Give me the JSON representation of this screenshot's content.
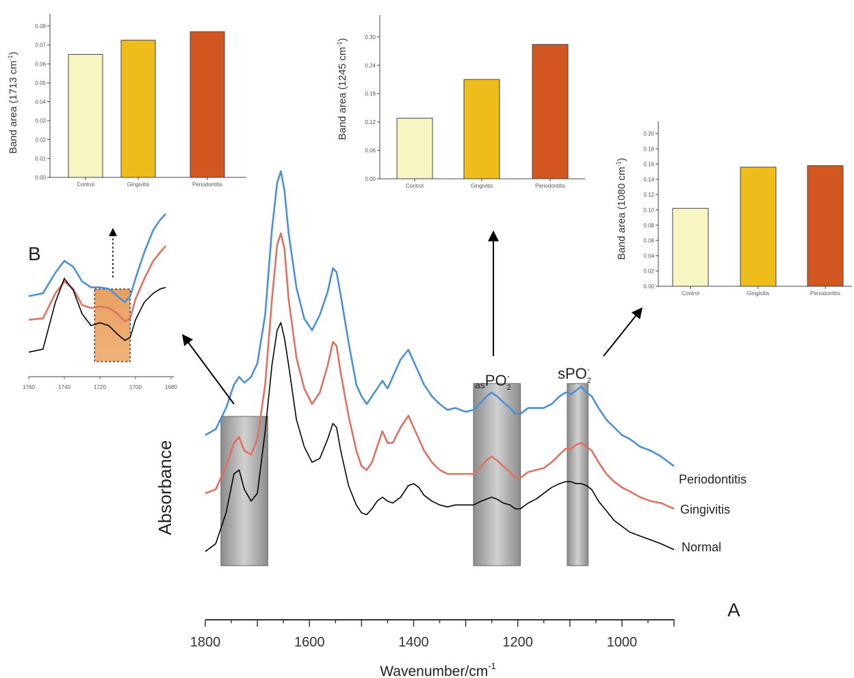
{
  "chart_data": [
    {
      "id": "main",
      "type": "line",
      "xlabel": "Wavenumber/cm",
      "xlabel_superscript": "-1",
      "ylabel": "Absorbance",
      "xlim": [
        1800,
        900
      ],
      "x_axis_reversed": true,
      "xticks": [
        1800,
        1600,
        1400,
        1200,
        1000
      ],
      "panel_label": "A",
      "grid": false,
      "highlight_bands": [
        [
          1770,
          1680
        ],
        [
          1285,
          1195
        ],
        [
          1105,
          1065
        ]
      ],
      "band_labels": [
        {
          "prefix": "as",
          "text": "PO",
          "sub": "2",
          "sup": "-"
        },
        {
          "prefix": "",
          "text": "sPO",
          "sub": "2",
          "sup": "-"
        }
      ],
      "series": [
        {
          "name": "Periodontitis",
          "color": "#4a90d9",
          "x": [
            1800,
            1780,
            1760,
            1745,
            1735,
            1725,
            1712,
            1700,
            1685,
            1672,
            1662,
            1655,
            1648,
            1640,
            1625,
            1610,
            1595,
            1580,
            1565,
            1555,
            1548,
            1540,
            1525,
            1510,
            1500,
            1490,
            1480,
            1470,
            1460,
            1450,
            1440,
            1425,
            1410,
            1400,
            1390,
            1380,
            1365,
            1350,
            1335,
            1320,
            1300,
            1285,
            1270,
            1260,
            1250,
            1240,
            1228,
            1215,
            1205,
            1195,
            1180,
            1165,
            1150,
            1135,
            1120,
            1108,
            1098,
            1088,
            1078,
            1068,
            1058,
            1045,
            1030,
            1015,
            1000,
            985,
            965,
            945,
            925,
            900
          ],
          "y": [
            0.37,
            0.385,
            0.44,
            0.5,
            0.52,
            0.505,
            0.52,
            0.555,
            0.68,
            0.9,
            1.02,
            1.05,
            1.0,
            0.89,
            0.75,
            0.67,
            0.64,
            0.68,
            0.74,
            0.8,
            0.79,
            0.73,
            0.61,
            0.5,
            0.47,
            0.45,
            0.47,
            0.49,
            0.51,
            0.49,
            0.52,
            0.565,
            0.59,
            0.56,
            0.53,
            0.5,
            0.47,
            0.45,
            0.435,
            0.44,
            0.43,
            0.435,
            0.455,
            0.47,
            0.48,
            0.47,
            0.455,
            0.44,
            0.425,
            0.425,
            0.44,
            0.44,
            0.44,
            0.45,
            0.47,
            0.48,
            0.475,
            0.485,
            0.495,
            0.48,
            0.47,
            0.44,
            0.41,
            0.39,
            0.37,
            0.36,
            0.34,
            0.33,
            0.315,
            0.29
          ]
        },
        {
          "name": "Gingivitis",
          "color": "#e07060",
          "x": [
            1800,
            1780,
            1760,
            1745,
            1735,
            1725,
            1712,
            1700,
            1685,
            1672,
            1662,
            1655,
            1648,
            1640,
            1625,
            1610,
            1595,
            1580,
            1565,
            1555,
            1548,
            1540,
            1525,
            1510,
            1500,
            1490,
            1480,
            1470,
            1460,
            1450,
            1440,
            1425,
            1410,
            1400,
            1390,
            1380,
            1365,
            1350,
            1335,
            1320,
            1300,
            1285,
            1270,
            1260,
            1250,
            1240,
            1228,
            1215,
            1205,
            1195,
            1180,
            1165,
            1150,
            1135,
            1120,
            1108,
            1098,
            1088,
            1078,
            1068,
            1058,
            1045,
            1030,
            1015,
            1000,
            985,
            965,
            945,
            925,
            900
          ],
          "y": [
            0.22,
            0.23,
            0.29,
            0.35,
            0.365,
            0.33,
            0.32,
            0.36,
            0.5,
            0.72,
            0.86,
            0.89,
            0.85,
            0.72,
            0.57,
            0.49,
            0.45,
            0.48,
            0.55,
            0.61,
            0.6,
            0.53,
            0.42,
            0.33,
            0.29,
            0.28,
            0.3,
            0.34,
            0.38,
            0.35,
            0.35,
            0.39,
            0.42,
            0.39,
            0.36,
            0.33,
            0.3,
            0.28,
            0.27,
            0.27,
            0.27,
            0.27,
            0.29,
            0.305,
            0.315,
            0.305,
            0.29,
            0.275,
            0.26,
            0.26,
            0.275,
            0.28,
            0.285,
            0.3,
            0.32,
            0.335,
            0.335,
            0.345,
            0.35,
            0.34,
            0.33,
            0.3,
            0.27,
            0.25,
            0.235,
            0.225,
            0.21,
            0.2,
            0.195,
            0.18
          ]
        },
        {
          "name": "Normal",
          "color": "#000000",
          "x": [
            1800,
            1780,
            1760,
            1745,
            1735,
            1725,
            1712,
            1700,
            1685,
            1672,
            1662,
            1655,
            1648,
            1640,
            1625,
            1610,
            1595,
            1580,
            1565,
            1555,
            1548,
            1540,
            1525,
            1510,
            1500,
            1490,
            1480,
            1470,
            1460,
            1450,
            1440,
            1425,
            1410,
            1400,
            1390,
            1380,
            1365,
            1350,
            1335,
            1320,
            1300,
            1285,
            1270,
            1260,
            1250,
            1240,
            1228,
            1215,
            1205,
            1195,
            1180,
            1165,
            1150,
            1135,
            1120,
            1108,
            1098,
            1088,
            1078,
            1068,
            1058,
            1045,
            1030,
            1015,
            1000,
            985,
            965,
            945,
            925,
            900
          ],
          "y": [
            0.07,
            0.09,
            0.17,
            0.27,
            0.28,
            0.23,
            0.2,
            0.22,
            0.38,
            0.55,
            0.64,
            0.66,
            0.62,
            0.55,
            0.41,
            0.34,
            0.3,
            0.31,
            0.36,
            0.4,
            0.39,
            0.33,
            0.24,
            0.19,
            0.17,
            0.165,
            0.18,
            0.2,
            0.21,
            0.2,
            0.195,
            0.21,
            0.24,
            0.245,
            0.235,
            0.215,
            0.2,
            0.19,
            0.185,
            0.19,
            0.19,
            0.19,
            0.2,
            0.205,
            0.21,
            0.205,
            0.195,
            0.19,
            0.18,
            0.18,
            0.195,
            0.205,
            0.22,
            0.235,
            0.245,
            0.25,
            0.25,
            0.245,
            0.245,
            0.24,
            0.23,
            0.2,
            0.175,
            0.15,
            0.135,
            0.12,
            0.11,
            0.1,
            0.09,
            0.075
          ]
        }
      ]
    },
    {
      "id": "inset-1713",
      "type": "bar",
      "ylabel": "Band area (1713 cm",
      "ylabel_superscript": "-1",
      "ylabel_tail": ")",
      "ylim": [
        0,
        0.08
      ],
      "yticks": [
        0.0,
        0.01,
        0.02,
        0.03,
        0.04,
        0.05,
        0.06,
        0.07,
        0.08
      ],
      "categories": [
        "Control",
        "Gingivitis",
        "Periodontitis"
      ],
      "values": [
        0.065,
        0.0725,
        0.077
      ],
      "colors": [
        "#f7f5c2",
        "#eebc1b",
        "#d2561f"
      ]
    },
    {
      "id": "inset-1245",
      "type": "bar",
      "ylabel": "Band area (1245 cm",
      "ylabel_superscript": "-1",
      "ylabel_tail": ")",
      "ylim": [
        0,
        0.32
      ],
      "yticks": [
        0.0,
        0.06,
        0.12,
        0.18,
        0.24,
        0.3
      ],
      "categories": [
        "Control",
        "Gingivitis",
        "Periodontitis"
      ],
      "values": [
        0.128,
        0.21,
        0.284
      ],
      "colors": [
        "#f7f5c2",
        "#eebc1b",
        "#d2561f"
      ]
    },
    {
      "id": "inset-1080",
      "type": "bar",
      "ylabel": "Band area (1080 cm",
      "ylabel_superscript": "-1",
      "ylabel_tail": ")",
      "ylim": [
        0,
        0.2
      ],
      "yticks": [
        0.0,
        0.02,
        0.04,
        0.06,
        0.08,
        0.1,
        0.12,
        0.14,
        0.16,
        0.18,
        0.2
      ],
      "categories": [
        "Control",
        "Gingivitis",
        "Periodontitis"
      ],
      "values": [
        0.102,
        0.156,
        0.158
      ],
      "colors": [
        "#f7f5c2",
        "#eebc1b",
        "#d2561f"
      ]
    },
    {
      "id": "inset-B",
      "type": "line",
      "panel_label": "B",
      "xlim": [
        1760,
        1680
      ],
      "x_axis_reversed": true,
      "xticks": [
        1760,
        1740,
        1720,
        1700,
        1680
      ],
      "highlight_band": [
        1723,
        1703
      ],
      "series": [
        {
          "name": "",
          "color": "#4a90d9",
          "x": [
            1760,
            1752,
            1745,
            1740,
            1735,
            1730,
            1725,
            1720,
            1715,
            1710,
            1706,
            1703,
            1700,
            1695,
            1690,
            1686,
            1683
          ],
          "y": [
            0.5,
            0.52,
            0.66,
            0.74,
            0.7,
            0.6,
            0.56,
            0.56,
            0.55,
            0.5,
            0.46,
            0.5,
            0.62,
            0.8,
            0.95,
            1.02,
            1.06
          ]
        },
        {
          "name": "",
          "color": "#e07060",
          "x": [
            1760,
            1752,
            1745,
            1740,
            1735,
            1730,
            1725,
            1720,
            1715,
            1710,
            1706,
            1703,
            1700,
            1695,
            1690,
            1686,
            1683
          ],
          "y": [
            0.34,
            0.35,
            0.52,
            0.6,
            0.55,
            0.44,
            0.42,
            0.43,
            0.42,
            0.38,
            0.33,
            0.35,
            0.48,
            0.62,
            0.74,
            0.8,
            0.84
          ]
        },
        {
          "name": "",
          "color": "#000000",
          "x": [
            1760,
            1752,
            1745,
            1740,
            1735,
            1730,
            1725,
            1720,
            1715,
            1710,
            1706,
            1703,
            1700,
            1695,
            1690,
            1686,
            1683
          ],
          "y": [
            0.12,
            0.14,
            0.46,
            0.62,
            0.54,
            0.38,
            0.3,
            0.32,
            0.3,
            0.24,
            0.2,
            0.22,
            0.34,
            0.46,
            0.52,
            0.55,
            0.56
          ]
        }
      ]
    }
  ]
}
